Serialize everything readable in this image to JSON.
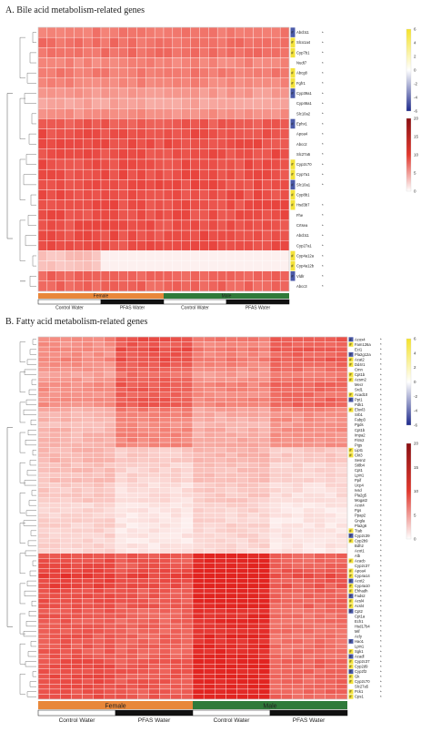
{
  "panels": [
    {
      "title": "A.  Bile acid metabolism-related genes",
      "sex_groups": [
        "Female",
        "Male"
      ],
      "treatment_groups": [
        "Control Water",
        "PFAS Water",
        "Control Water",
        "PFAS Water"
      ],
      "genes": [
        {
          "name": "Abcb11",
          "mark": "#",
          "star": "*"
        },
        {
          "name": "Slco1a4",
          "mark": "#",
          "star": "*"
        },
        {
          "name": "Cyp7b1",
          "mark": "#",
          "star": "*"
        },
        {
          "name": "Nudt7",
          "mark": "",
          "star": "*"
        },
        {
          "name": "Abcg8",
          "mark": "#",
          "star": "*"
        },
        {
          "name": "Fgfr1",
          "mark": "#",
          "star": "*"
        },
        {
          "name": "Cyp39a1",
          "mark": "#",
          "star": "*"
        },
        {
          "name": "Cyp46a1",
          "mark": "",
          "star": "*"
        },
        {
          "name": "Slc10a2",
          "mark": "",
          "star": "*"
        },
        {
          "name": "Ephx1",
          "mark": "#",
          "star": "*"
        },
        {
          "name": "Apoa4",
          "mark": "",
          "star": "*"
        },
        {
          "name": "Abcc2",
          "mark": "",
          "star": "*"
        },
        {
          "name": "Slc27a5",
          "mark": "",
          "star": "*"
        },
        {
          "name": "Cyp2c70",
          "mark": "#",
          "star": "*"
        },
        {
          "name": "Cyp7a1",
          "mark": "#",
          "star": "*"
        },
        {
          "name": "Slc10a1",
          "mark": "#",
          "star": "*"
        },
        {
          "name": "Cyp8b1",
          "mark": "#",
          "star": ""
        },
        {
          "name": "Hsd3b7",
          "mark": "#",
          "star": "*"
        },
        {
          "name": "Fhe",
          "mark": "",
          "star": "*"
        },
        {
          "name": "Crtsea",
          "mark": "",
          "star": "*"
        },
        {
          "name": "Abcb11",
          "mark": "",
          "star": "*"
        },
        {
          "name": "Cyp27a1",
          "mark": "",
          "star": "*"
        },
        {
          "name": "Cyp4a12a",
          "mark": "#",
          "star": "*"
        },
        {
          "name": "Cyp4a12b",
          "mark": "#",
          "star": "*"
        },
        {
          "name": "Vldlr",
          "mark": "#",
          "star": "*"
        },
        {
          "name": "Abcc3",
          "mark": "",
          "star": "*"
        }
      ],
      "fc_legend": {
        "ticks": [
          "6",
          "4",
          "2",
          "0",
          "-2",
          "-4",
          "-6"
        ],
        "colors": [
          "#f5e32a",
          "#ffffff",
          "#1e2a8c"
        ]
      },
      "expr_legend": {
        "ticks": [
          "20",
          "15",
          "10",
          "5",
          "0"
        ],
        "colors": [
          "#ffffff",
          "#e2392e",
          "#8a0f12"
        ]
      }
    },
    {
      "title": "B.  Fatty acid metabolism-related genes",
      "sex_groups": [
        "Female",
        "Male"
      ],
      "treatment_groups": [
        "Control Water",
        "PFAS Water",
        "Control Water",
        "PFAS Water"
      ],
      "genes": [
        {
          "name": "Acox4",
          "mark": "#",
          "star": "*"
        },
        {
          "name": "Fam126a",
          "mark": "#",
          "star": "*"
        },
        {
          "name": "Eci1",
          "mark": "",
          "star": "*"
        },
        {
          "name": "Pla2g12a",
          "mark": "#",
          "star": "*"
        },
        {
          "name": "Acat2",
          "mark": "#",
          "star": "*"
        },
        {
          "name": "Dd4r1",
          "mark": "#",
          "star": "*"
        },
        {
          "name": "Cmn",
          "mark": "",
          "star": "*"
        },
        {
          "name": "Cpt1b",
          "mark": "#",
          "star": "*"
        },
        {
          "name": "Acsm2",
          "mark": "#",
          "star": "*"
        },
        {
          "name": "Mecr",
          "mark": "",
          "star": "*"
        },
        {
          "name": "Srd1",
          "mark": "",
          "star": "*"
        },
        {
          "name": "Acad10",
          "mark": "#",
          "star": "*"
        },
        {
          "name": "Ppt1",
          "mark": "#",
          "star": "*"
        },
        {
          "name": "Pdk1",
          "mark": "",
          "star": "*"
        },
        {
          "name": "Elovl3",
          "mark": "#",
          "star": "*"
        },
        {
          "name": "Srb1",
          "mark": "",
          "star": "*"
        },
        {
          "name": "Fabp3",
          "mark": "",
          "star": "*"
        },
        {
          "name": "Pgds",
          "mark": "",
          "star": "*"
        },
        {
          "name": "Cpt1b",
          "mark": "",
          "star": "*"
        },
        {
          "name": "Impa2",
          "mark": "",
          "star": "*"
        },
        {
          "name": "Fitm2",
          "mark": "",
          "star": "*"
        },
        {
          "name": "Pigs",
          "mark": "",
          "star": "*"
        },
        {
          "name": "Lipt1",
          "mark": "#",
          "star": "*"
        },
        {
          "name": "Ckt3",
          "mark": "#",
          "star": "*"
        },
        {
          "name": "Sesn2",
          "mark": "",
          "star": "*"
        },
        {
          "name": "St8b4",
          "mark": "",
          "star": "*"
        },
        {
          "name": "Cpt1",
          "mark": "",
          "star": "*"
        },
        {
          "name": "Lpin1",
          "mark": "",
          "star": "*"
        },
        {
          "name": "Ppif",
          "mark": "",
          "star": "*"
        },
        {
          "name": "Ucp4",
          "mark": "",
          "star": "*"
        },
        {
          "name": "Ivsd",
          "mark": "",
          "star": "*"
        },
        {
          "name": "Pla2g5",
          "mark": "",
          "star": "*"
        },
        {
          "name": "Mogat2",
          "mark": "",
          "star": "*"
        },
        {
          "name": "Acot4",
          "mark": "",
          "star": "*"
        },
        {
          "name": "Pgs",
          "mark": "",
          "star": "*"
        },
        {
          "name": "Ppap2",
          "mark": "",
          "star": "*"
        },
        {
          "name": "Gngla",
          "mark": "",
          "star": "*"
        },
        {
          "name": "Pla2g6",
          "mark": "",
          "star": "*"
        },
        {
          "name": "Ttab",
          "mark": "#",
          "star": "*"
        },
        {
          "name": "Cyp2c39",
          "mark": "#",
          "star": "*"
        },
        {
          "name": "Cyp2b9",
          "mark": "#",
          "star": "*"
        },
        {
          "name": "Bdh2",
          "mark": "",
          "star": "*"
        },
        {
          "name": "Acot1",
          "mark": "",
          "star": "*"
        },
        {
          "name": "Alb",
          "mark": "",
          "star": "*"
        },
        {
          "name": "Acacb",
          "mark": "#",
          "star": "*"
        },
        {
          "name": "Cyp2c37",
          "mark": "",
          "star": "*"
        },
        {
          "name": "Apoa4",
          "mark": "#",
          "star": "*"
        },
        {
          "name": "Cyp4a14",
          "mark": "#",
          "star": "*"
        },
        {
          "name": "Acot2",
          "mark": "#",
          "star": "*"
        },
        {
          "name": "Cyp4a10",
          "mark": "#",
          "star": "*"
        },
        {
          "name": "Ehhadh",
          "mark": "#",
          "star": "*"
        },
        {
          "name": "Fads2",
          "mark": "#",
          "star": "*"
        },
        {
          "name": "Acsl4",
          "mark": "#",
          "star": "*"
        },
        {
          "name": "Acsl4",
          "mark": "#",
          "star": "*"
        },
        {
          "name": "Cpt2",
          "mark": "#",
          "star": "*"
        },
        {
          "name": "Cpt1a",
          "mark": "",
          "star": "*"
        },
        {
          "name": "Ech1",
          "mark": "",
          "star": "*"
        },
        {
          "name": "Hsd17b4",
          "mark": "",
          "star": "*"
        },
        {
          "name": "Mif",
          "mark": "",
          "star": "*"
        },
        {
          "name": "Acly",
          "mark": "",
          "star": "*"
        },
        {
          "name": "Hao1",
          "mark": "#",
          "star": "*"
        },
        {
          "name": "Lpin1",
          "mark": "",
          "star": "*"
        },
        {
          "name": "Sgk1",
          "mark": "#",
          "star": "*"
        },
        {
          "name": "Acadl",
          "mark": "#",
          "star": "*"
        },
        {
          "name": "Cyp2c37",
          "mark": "#",
          "star": "*"
        },
        {
          "name": "Cyp2d9",
          "mark": "#",
          "star": "*"
        },
        {
          "name": "Cyp2f2",
          "mark": "#",
          "star": "*"
        },
        {
          "name": "Gk",
          "mark": "#",
          "star": "*"
        },
        {
          "name": "Cyp2c70",
          "mark": "#",
          "star": "*"
        },
        {
          "name": "Slc27a5",
          "mark": "",
          "star": "*"
        },
        {
          "name": "Pck1",
          "mark": "#",
          "star": "*"
        },
        {
          "name": "Cps1",
          "mark": "#",
          "star": "*"
        }
      ],
      "fc_legend": {
        "ticks": [
          "6",
          "4",
          "2",
          "0",
          "-2",
          "-4",
          "-6"
        ],
        "colors": [
          "#f5e32a",
          "#ffffff",
          "#1e2a8c"
        ]
      },
      "expr_legend": {
        "ticks": [
          "20",
          "15",
          "10",
          "5",
          "0"
        ],
        "colors": [
          "#ffffff",
          "#e2392e",
          "#8a0f12"
        ]
      }
    }
  ],
  "colors": {
    "female": "#e8873a",
    "male": "#2f7a3a",
    "control": "#ffffff",
    "pfas": "#111111",
    "mark_yellow": "#f3e23a",
    "mark_blue": "#4b5aa8",
    "cell_high": "#e52a26",
    "cell_mid": "#f27a6e",
    "cell_low": "#fbe3e1"
  },
  "chart_data": [
    {
      "type": "heatmap",
      "title": "Bile acid metabolism-related genes",
      "rows": [
        "Abcb11",
        "Slco1a4",
        "Cyp7b1",
        "Nudt7",
        "Abcg8",
        "Fgfr1",
        "Cyp39a1",
        "Cyp46a1",
        "Slc10a2",
        "Ephx1",
        "Apoa4",
        "Abcc2",
        "Slc27a5",
        "Cyp2c70",
        "Cyp7a1",
        "Slc10a1",
        "Cyp8b1",
        "Hsd3b7",
        "Fhe",
        "Crtsea",
        "Abcb11",
        "Cyp27a1",
        "Cyp4a12a",
        "Cyp4a12b",
        "Vldlr",
        "Abcc3"
      ],
      "columns": 28,
      "column_groups": [
        {
          "sex": "Female",
          "treatment": "Control Water",
          "n": 7
        },
        {
          "sex": "Female",
          "treatment": "PFAS Water",
          "n": 7
        },
        {
          "sex": "Male",
          "treatment": "Control Water",
          "n": 7
        },
        {
          "sex": "Male",
          "treatment": "PFAS Water",
          "n": 7
        }
      ],
      "row_levels": [
        12,
        13,
        13,
        11,
        12,
        11,
        9,
        8,
        10,
        15,
        16,
        16,
        16,
        16,
        16,
        16,
        16,
        16,
        16,
        16,
        16,
        16,
        5,
        5,
        14,
        14
      ],
      "row_group_offsets": [
        [
          0,
          0,
          0,
          0
        ],
        [
          0,
          0,
          0,
          0
        ],
        [
          0,
          0,
          0,
          0
        ],
        [
          0,
          0,
          0,
          0
        ],
        [
          0,
          0,
          0,
          0
        ],
        [
          0,
          0,
          0,
          0
        ],
        [
          0,
          0,
          0,
          0
        ],
        [
          0,
          0,
          0,
          0
        ],
        [
          0,
          0,
          0,
          0
        ],
        [
          0,
          0,
          0,
          0
        ],
        [
          0,
          0,
          0,
          0
        ],
        [
          0,
          0,
          0,
          0
        ],
        [
          0,
          0,
          0,
          0
        ],
        [
          0,
          0,
          0,
          0
        ],
        [
          0,
          0,
          0,
          0
        ],
        [
          0,
          0,
          0,
          0
        ],
        [
          0,
          0,
          0,
          0
        ],
        [
          0,
          0,
          0,
          0
        ],
        [
          0,
          0,
          0,
          0
        ],
        [
          0,
          0,
          0,
          0
        ],
        [
          0,
          0,
          0,
          0
        ],
        [
          0,
          0,
          0,
          0
        ],
        [
          0,
          11,
          11,
          11
        ],
        [
          0,
          11,
          11,
          11
        ],
        [
          0,
          0,
          0,
          0
        ],
        [
          0,
          0,
          0,
          0
        ]
      ],
      "scale": {
        "min": 0,
        "max": 20
      },
      "fold_change_scale": {
        "min": -6,
        "max": 6
      }
    },
    {
      "type": "heatmap",
      "title": "Fatty acid metabolism-related genes",
      "rows": 72,
      "columns": 28,
      "column_groups": [
        {
          "sex": "Female",
          "treatment": "Control Water",
          "n": 7
        },
        {
          "sex": "Female",
          "treatment": "PFAS Water",
          "n": 7
        },
        {
          "sex": "Male",
          "treatment": "Control Water",
          "n": 7
        },
        {
          "sex": "Male",
          "treatment": "PFAS Water",
          "n": 7
        }
      ],
      "row_levels": [
        13,
        12,
        13,
        12,
        13,
        12,
        11,
        10,
        11,
        12,
        12,
        11,
        12,
        12,
        9,
        8,
        8,
        7,
        8,
        8,
        8,
        8,
        6,
        6,
        6,
        5,
        5,
        5,
        5,
        4,
        4,
        4,
        4,
        3,
        3,
        3,
        3,
        3,
        3,
        3,
        3,
        3,
        3,
        16,
        16,
        16,
        17,
        18,
        17,
        17,
        16,
        16,
        16,
        16,
        15,
        15,
        15,
        15,
        15,
        15,
        15,
        15,
        15,
        15,
        16,
        16,
        16,
        16,
        16,
        16,
        16,
        16
      ],
      "row_group_offsets_pattern": {
        "upper_block": [
          2,
          -3,
          1,
          -2
        ],
        "middle_block": [
          0,
          2,
          0,
          2
        ],
        "lower_block": [
          0,
          1,
          -4,
          2
        ]
      },
      "scale": {
        "min": 0,
        "max": 20
      },
      "fold_change_scale": {
        "min": -6,
        "max": 6
      }
    }
  ]
}
